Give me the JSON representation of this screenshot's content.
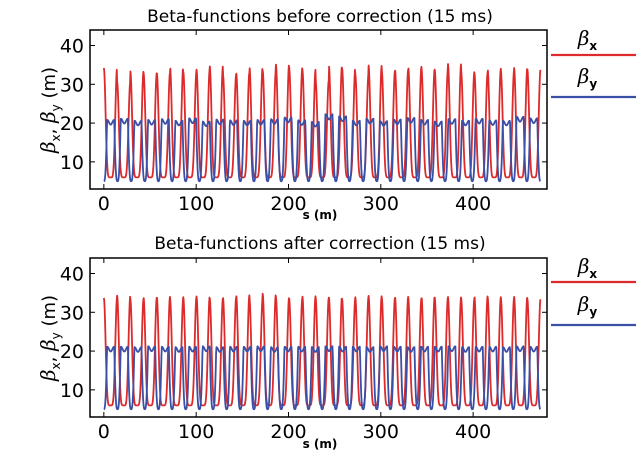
{
  "colors": {
    "beta_x": "#dd2a2a",
    "beta_y": "#3a4fa6"
  },
  "chart_data": [
    {
      "type": "line",
      "title": "Beta-functions before correction (15 ms)",
      "xlabel": "s (m)",
      "ylabel_main": "β",
      "ylabel_sub_x": "x",
      "ylabel_sep": ", ",
      "ylabel_sub_y": "y",
      "ylabel_unit": " (m)",
      "xlim": [
        -15,
        480
      ],
      "ylim": [
        3,
        44
      ],
      "xticks": [
        0,
        100,
        200,
        300,
        400
      ],
      "yticks": [
        10,
        20,
        30,
        40
      ],
      "legend": [
        {
          "sym": "β",
          "sub": "x",
          "color": "#dd2a2a"
        },
        {
          "sym": "β",
          "sub": "y",
          "color": "#3a4fa6"
        }
      ],
      "series": [
        {
          "key": "beta_x",
          "color": "#dd2a2a",
          "x_start": 0,
          "x_end": 473,
          "min": 6,
          "peaks": [
            34.2,
            30.7,
            33.4,
            32.9,
            33.0,
            34.5,
            33.2,
            33.8,
            34.7,
            32.5,
            33.0,
            34.6,
            33.6,
            35.1,
            34.3,
            33.8,
            31.0,
            35.0,
            34.2,
            32.5,
            34.9,
            33.4,
            33.8,
            34.5,
            34.0,
            33.8,
            35.3,
            33.2,
            32.9,
            34.0,
            33.4,
            34.2,
            33.9
          ]
        },
        {
          "key": "beta_y",
          "color": "#3a4fa6",
          "x_start": 0,
          "x_end": 473,
          "min": 5,
          "peaks": [
            20.2,
            20.5,
            20.0,
            20.2,
            20.4,
            20.0,
            20.6,
            19.8,
            20.3,
            20.1,
            20.0,
            20.2,
            20.4,
            20.8,
            20.1,
            19.7,
            21.6,
            21.1,
            20.0,
            20.5,
            19.9,
            20.3,
            20.7,
            20.2,
            19.8,
            20.4,
            20.0,
            20.5,
            20.1,
            20.0,
            21.0,
            20.6
          ]
        }
      ]
    },
    {
      "type": "line",
      "title": "Beta-functions after correction (15 ms)",
      "xlabel": "s (m)",
      "ylabel_main": "β",
      "ylabel_sub_x": "x",
      "ylabel_sep": ", ",
      "ylabel_sub_y": "y",
      "ylabel_unit": " (m)",
      "xlim": [
        -15,
        480
      ],
      "ylim": [
        3,
        44
      ],
      "xticks": [
        0,
        100,
        200,
        300,
        400
      ],
      "yticks": [
        10,
        20,
        30,
        40
      ],
      "legend": [
        {
          "sym": "β",
          "sub": "x",
          "color": "#dd2a2a"
        },
        {
          "sym": "β",
          "sub": "y",
          "color": "#3a4fa6"
        }
      ],
      "series": [
        {
          "key": "beta_x",
          "color": "#dd2a2a",
          "x_start": 0,
          "x_end": 473,
          "min": 6,
          "peaks": [
            33.7,
            34.3,
            33.4,
            33.8,
            34.0,
            33.5,
            33.9,
            34.1,
            33.6,
            33.8,
            34.4,
            33.5,
            34.8,
            33.9,
            33.6,
            34.2,
            33.8,
            34.1,
            33.5,
            33.9,
            34.3,
            33.7,
            34.0,
            33.6,
            34.2,
            33.8,
            34.0,
            33.5,
            34.1,
            33.9,
            33.6,
            34.0,
            33.5
          ]
        },
        {
          "key": "beta_y",
          "color": "#3a4fa6",
          "x_start": 0,
          "x_end": 473,
          "min": 5,
          "peaks": [
            20.5,
            20.5,
            20.4,
            20.6,
            20.5,
            20.4,
            20.5,
            20.6,
            20.4,
            20.5,
            20.5,
            20.6,
            20.4,
            20.5,
            20.5,
            20.4,
            20.6,
            20.5,
            20.5,
            20.4,
            20.6,
            20.5,
            20.4,
            20.5,
            20.5,
            20.6,
            20.4,
            20.5,
            20.5,
            20.4,
            20.6,
            20.5
          ]
        }
      ]
    }
  ]
}
